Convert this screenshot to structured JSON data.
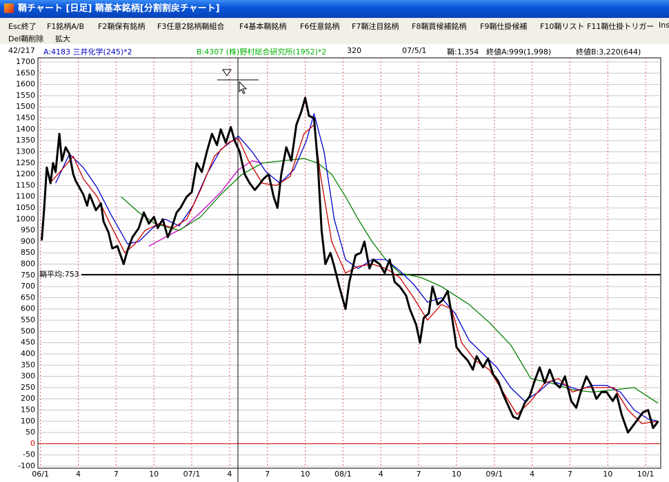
{
  "window": {
    "title": "鞘チャート [日足] 鞘基本銘柄[分割割戻チャート]"
  },
  "menu": {
    "row1": [
      "Esc終了",
      "F1銘柄A/B",
      "F2鞘保有銘柄",
      "F3任意2銘柄鞘組合",
      "F4基本鞘銘柄",
      "F6任意銘柄",
      "F7鞘注目銘柄",
      "F8鞘買候補銘柄",
      "F9鞘仕掛候補",
      "F10鞘リスト",
      "F11鞘仕掛トリガー",
      "Ins"
    ],
    "row2": [
      "Del鞘削除",
      "拡大"
    ]
  },
  "info": {
    "count": "42/217",
    "stock_a": "A:4183 三井化学(245)*2",
    "stock_b": "B:4307 (株)野村総合研究所(1952)*2",
    "number": "320",
    "date": "07/5/1",
    "spread": "鞘:1,354",
    "close_a": "終値A:999(1,998)",
    "close_b": "終値B:3,220(644)"
  },
  "chart_data": {
    "type": "line",
    "xlim": [
      -0.2,
      49.2
    ],
    "xticks": [
      {
        "value": 0,
        "label": "06/1"
      },
      {
        "value": 3,
        "label": "4"
      },
      {
        "value": 6,
        "label": "7"
      },
      {
        "value": 9,
        "label": "10"
      },
      {
        "value": 12,
        "label": "07/1"
      },
      {
        "value": 15,
        "label": "4"
      },
      {
        "value": 18,
        "label": "7"
      },
      {
        "value": 21,
        "label": "10"
      },
      {
        "value": 24,
        "label": "08/1"
      },
      {
        "value": 27,
        "label": "4"
      },
      {
        "value": 30,
        "label": "7"
      },
      {
        "value": 33,
        "label": "10"
      },
      {
        "value": 36,
        "label": "09/1"
      },
      {
        "value": 39,
        "label": "4"
      },
      {
        "value": 42,
        "label": "7"
      },
      {
        "value": 45,
        "label": "10"
      },
      {
        "value": 48,
        "label": "10/1"
      }
    ],
    "ylim": [
      -100,
      1700
    ],
    "yticks": [
      -100,
      -50,
      0,
      50,
      100,
      150,
      200,
      250,
      300,
      350,
      400,
      450,
      500,
      550,
      600,
      650,
      700,
      750,
      800,
      850,
      900,
      950,
      1000,
      1050,
      1100,
      1150,
      1200,
      1250,
      1300,
      1350,
      1400,
      1450,
      1500,
      1550,
      1600,
      1650,
      1700
    ],
    "grid": true,
    "zero_line": {
      "value": 0,
      "color": "#d00000"
    },
    "reference_line": {
      "value": 753,
      "label": "鞘平均:753",
      "color": "#000000"
    },
    "series": [
      {
        "color": "#cc00cc",
        "width": 1.3,
        "x": [
          8.6,
          9.9,
          11.3,
          12.7,
          14.3,
          15.7,
          16.8,
          17.6
        ],
        "values": [
          880,
          920,
          960,
          1030,
          1120,
          1220,
          1260,
          1250
        ]
      },
      {
        "color": "#008000",
        "width": 1.3,
        "x": [
          6.4,
          7.8,
          9.1,
          11.0,
          12.7,
          14.3,
          16.0,
          17.6,
          19.2,
          20.9,
          22.0,
          23.1,
          24.2,
          25.2,
          26.3,
          27.4,
          28.5,
          30.2,
          31.8,
          34.0,
          35.6,
          37.3,
          38.9,
          40.5,
          42.2,
          43.8,
          45.5,
          47.1,
          49.0
        ],
        "values": [
          1100,
          1030,
          980,
          950,
          1010,
          1110,
          1200,
          1250,
          1260,
          1270,
          1250,
          1200,
          1100,
          1000,
          900,
          820,
          760,
          740,
          700,
          620,
          540,
          440,
          290,
          270,
          240,
          230,
          240,
          250,
          180
        ]
      },
      {
        "color": "#0000cc",
        "width": 1.3,
        "x": [
          1.2,
          2.3,
          3.4,
          4.5,
          5.6,
          6.9,
          7.8,
          8.9,
          9.9,
          11.0,
          12.1,
          13.2,
          14.3,
          15.7,
          16.8,
          17.9,
          19.0,
          20.1,
          21.1,
          21.7,
          22.5,
          23.3,
          24.2,
          25.2,
          26.3,
          27.4,
          28.5,
          29.6,
          30.7,
          31.8,
          32.9,
          34.0,
          35.1,
          36.2,
          37.3,
          38.4,
          39.5,
          40.5,
          41.6,
          42.7,
          43.8,
          44.9,
          46.0,
          47.1,
          48.2,
          49.0
        ],
        "values": [
          1160,
          1290,
          1230,
          1140,
          1020,
          890,
          900,
          960,
          1000,
          970,
          1060,
          1200,
          1310,
          1370,
          1300,
          1210,
          1160,
          1220,
          1350,
          1470,
          1300,
          1000,
          820,
          780,
          820,
          820,
          770,
          710,
          630,
          650,
          580,
          460,
          400,
          340,
          250,
          190,
          230,
          280,
          260,
          240,
          260,
          260,
          230,
          150,
          110,
          100
        ]
      },
      {
        "color": "#cc0000",
        "width": 1.3,
        "x": [
          0.9,
          1.7,
          2.6,
          3.4,
          4.5,
          5.6,
          6.7,
          7.5,
          8.3,
          9.4,
          10.5,
          11.6,
          12.7,
          13.8,
          14.9,
          15.7,
          16.5,
          17.6,
          18.7,
          19.8,
          20.9,
          21.7,
          22.2,
          23.1,
          24.2,
          25.2,
          26.3,
          27.4,
          28.5,
          29.6,
          30.7,
          31.8,
          32.6,
          33.4,
          34.5,
          35.6,
          36.7,
          37.8,
          38.9,
          40.0,
          41.1,
          42.2,
          43.3,
          44.4,
          45.5,
          46.6,
          47.7,
          49.0
        ],
        "values": [
          1170,
          1220,
          1280,
          1180,
          1100,
          970,
          850,
          890,
          950,
          980,
          960,
          1000,
          1130,
          1280,
          1340,
          1360,
          1260,
          1160,
          1150,
          1190,
          1380,
          1420,
          1200,
          900,
          760,
          790,
          800,
          780,
          740,
          650,
          550,
          620,
          600,
          450,
          370,
          330,
          230,
          130,
          190,
          270,
          290,
          230,
          250,
          250,
          250,
          150,
          90,
          100
        ]
      },
      {
        "color": "#000000",
        "width": 3,
        "x": [
          0.1,
          0.3,
          0.5,
          0.8,
          1.0,
          1.2,
          1.5,
          1.7,
          2.0,
          2.3,
          2.6,
          2.8,
          3.1,
          3.4,
          3.7,
          3.9,
          4.4,
          4.8,
          5.0,
          5.4,
          5.7,
          6.1,
          6.6,
          6.9,
          7.3,
          7.8,
          8.2,
          8.6,
          9.0,
          9.3,
          9.7,
          10.1,
          10.4,
          10.8,
          11.1,
          11.6,
          12.0,
          12.4,
          12.8,
          13.2,
          13.6,
          14.0,
          14.3,
          14.7,
          15.1,
          15.4,
          15.8,
          16.2,
          16.6,
          17.0,
          17.3,
          17.7,
          18.1,
          18.5,
          18.8,
          19.1,
          19.5,
          19.9,
          20.3,
          20.7,
          21.0,
          21.3,
          21.7,
          22.0,
          22.3,
          22.6,
          23.0,
          23.3,
          23.7,
          24.2,
          24.5,
          25.0,
          25.4,
          25.7,
          26.1,
          26.4,
          26.9,
          27.3,
          27.7,
          28.1,
          28.5,
          29.0,
          29.3,
          29.8,
          30.1,
          30.4,
          30.8,
          31.1,
          31.5,
          31.9,
          32.3,
          32.6,
          33.0,
          33.4,
          33.9,
          34.3,
          34.6,
          35.1,
          35.5,
          35.9,
          36.3,
          36.7,
          37.1,
          37.5,
          37.9,
          38.4,
          38.8,
          39.2,
          39.6,
          40.0,
          40.4,
          40.8,
          41.2,
          41.6,
          42.1,
          42.5,
          42.8,
          43.3,
          43.7,
          44.1,
          44.5,
          44.9,
          45.4,
          45.7,
          46.1,
          46.6,
          47.0,
          47.4,
          47.8,
          48.2,
          48.6,
          49.0
        ],
        "values": [
          905,
          1050,
          1230,
          1160,
          1250,
          1210,
          1380,
          1260,
          1320,
          1290,
          1200,
          1170,
          1140,
          1110,
          1060,
          1110,
          1040,
          1070,
          990,
          940,
          870,
          880,
          800,
          860,
          920,
          960,
          1030,
          980,
          1010,
          960,
          1000,
          920,
          960,
          1030,
          1050,
          1100,
          1120,
          1250,
          1210,
          1300,
          1380,
          1330,
          1400,
          1340,
          1410,
          1350,
          1300,
          1200,
          1160,
          1130,
          1150,
          1180,
          1200,
          1100,
          1050,
          1200,
          1320,
          1260,
          1420,
          1480,
          1540,
          1460,
          1450,
          1250,
          950,
          800,
          850,
          790,
          700,
          600,
          720,
          840,
          850,
          900,
          780,
          820,
          800,
          760,
          820,
          720,
          700,
          660,
          600,
          530,
          450,
          560,
          580,
          700,
          620,
          640,
          680,
          580,
          430,
          400,
          370,
          330,
          390,
          340,
          380,
          310,
          280,
          220,
          170,
          120,
          110,
          180,
          210,
          280,
          340,
          270,
          330,
          270,
          250,
          300,
          190,
          160,
          220,
          300,
          260,
          200,
          230,
          230,
          190,
          220,
          130,
          50,
          80,
          110,
          140,
          150,
          70,
          100
        ]
      }
    ]
  }
}
